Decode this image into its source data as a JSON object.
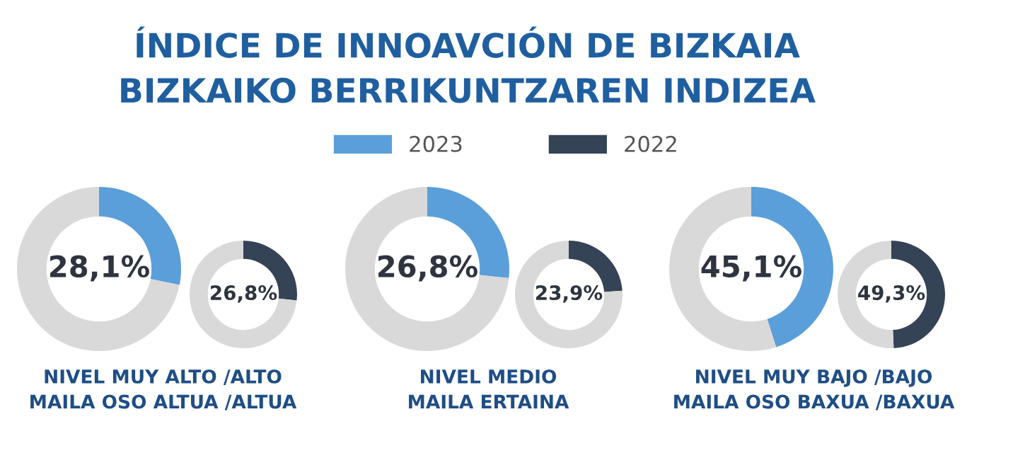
{
  "chart_data": [
    {
      "type": "donut",
      "title": "ÍNDICE DE INNOAVCIÓN DE BIZKAIA\nBIZKAIKO BERRIKUNTZAREN INDIZEA",
      "categories": [
        "2023",
        null
      ],
      "values": [
        28.1,
        71.9
      ],
      "colors": [
        "#5b9fda",
        "#d9d9d9"
      ],
      "annotations": [
        "28,1%"
      ],
      "xlabel": "NIVEL MUY ALTO /ALTO\nMAILA OSO ALTUA /ALTUA",
      "legend": "top"
    },
    {
      "type": "donut",
      "categories": [
        null,
        null
      ],
      "values": [
        26.8,
        73.2
      ],
      "colors": [
        "#5b9fda",
        "#d9d9d9"
      ],
      "annotations": [
        "26,8%"
      ],
      "xlabel": "NIVEL MEDIO\nMAILA ERTAINA"
    },
    {
      "type": "donut",
      "categories": [
        null,
        null
      ],
      "values": [
        45.1,
        54.9
      ],
      "colors": [
        "#5b9fda",
        "#d9d9d9"
      ],
      "annotations": [
        "45,1%"
      ],
      "xlabel": "NIVEL MUY BAJO /BAJO\nMAILA OSO BAXUA /BAXUA"
    },
    {
      "type": "donut",
      "categories": [
        "2022",
        null
      ],
      "values": [
        26.8,
        73.2
      ],
      "colors": [
        "#354357",
        "#d9d9d9"
      ],
      "annotations": [
        "26,8%"
      ],
      "legend": "top"
    },
    {
      "type": "donut",
      "categories": [
        null,
        null
      ],
      "values": [
        23.9,
        76.1
      ],
      "colors": [
        "#354357",
        "#d9d9d9"
      ],
      "annotations": [
        "23,9%"
      ]
    },
    {
      "type": "donut",
      "categories": [
        null,
        null
      ],
      "values": [
        49.3,
        50.7
      ],
      "colors": [
        "#354357",
        "#d9d9d9"
      ],
      "annotations": [
        "49,3%"
      ]
    }
  ]
}
